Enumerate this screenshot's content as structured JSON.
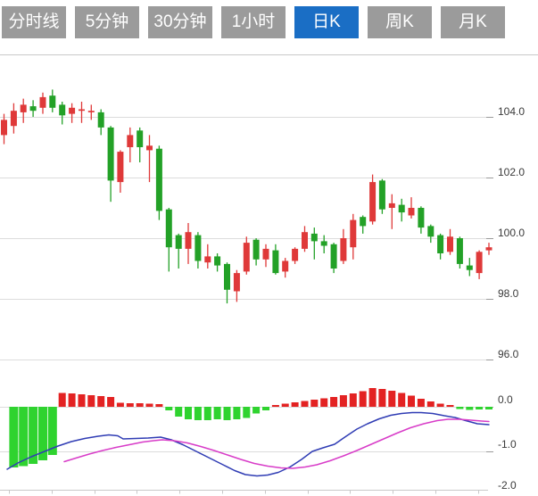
{
  "tabs": [
    {
      "label": "分时线",
      "active": false
    },
    {
      "label": "5分钟",
      "active": false
    },
    {
      "label": "30分钟",
      "active": false
    },
    {
      "label": "1小时",
      "active": false
    },
    {
      "label": "日K",
      "active": true
    },
    {
      "label": "周K",
      "active": false
    },
    {
      "label": "月K",
      "active": false
    }
  ],
  "colors": {
    "tab_bg": "#9b9b9b",
    "tab_active_bg": "#1a6ec5",
    "tab_text": "#ffffff",
    "candle_up": "#df3939",
    "candle_down": "#23a127",
    "macd_bar_up": "#e32222",
    "macd_bar_down": "#2fd32f",
    "dif_line": "#2f3cb4",
    "dea_line": "#d83cc8",
    "gridline": "#dcdcdc",
    "axis_line": "#c9c9c9",
    "axis_tick": "#9a9a9a",
    "label_text": "#3a3a3a"
  },
  "chart_data": {
    "type": "candlestick",
    "title": "Daily K-line (日K) chart with MACD indicator panel",
    "legend_position": "none",
    "grid": true,
    "price_axis": {
      "side": "right",
      "labels": [
        "104.0",
        "102.0",
        "100.0",
        "98.0",
        "96.0"
      ],
      "values": [
        104.0,
        102.0,
        100.0,
        98.0,
        96.0
      ],
      "range_hint": [
        95.4,
        105.1
      ]
    },
    "candles_ohlc": [
      [
        103.4,
        104.1,
        103.1,
        103.9
      ],
      [
        103.7,
        104.45,
        103.45,
        104.2
      ],
      [
        104.15,
        104.6,
        103.8,
        104.4
      ],
      [
        104.35,
        104.55,
        104.0,
        104.2
      ],
      [
        104.3,
        104.8,
        104.1,
        104.65
      ],
      [
        104.7,
        104.9,
        104.15,
        104.3
      ],
      [
        104.4,
        104.5,
        103.75,
        104.05
      ],
      [
        104.1,
        104.45,
        103.8,
        104.3
      ],
      [
        104.2,
        104.5,
        103.8,
        104.25
      ],
      [
        104.15,
        104.4,
        103.9,
        104.2
      ],
      [
        104.15,
        104.25,
        103.4,
        103.65
      ],
      [
        103.65,
        103.7,
        101.2,
        101.9
      ],
      [
        101.85,
        102.9,
        101.5,
        102.85
      ],
      [
        103.0,
        103.65,
        102.5,
        103.4
      ],
      [
        103.55,
        103.65,
        102.5,
        103.0
      ],
      [
        102.9,
        103.4,
        101.85,
        103.05
      ],
      [
        102.95,
        103.05,
        100.6,
        100.9
      ],
      [
        100.95,
        101.0,
        98.9,
        99.7
      ],
      [
        100.1,
        100.15,
        99.0,
        99.65
      ],
      [
        99.65,
        100.5,
        99.15,
        100.2
      ],
      [
        100.1,
        100.2,
        99.0,
        99.25
      ],
      [
        99.2,
        99.8,
        99.0,
        99.4
      ],
      [
        99.4,
        99.5,
        98.9,
        99.1
      ],
      [
        99.15,
        99.2,
        97.85,
        98.3
      ],
      [
        98.25,
        98.95,
        97.9,
        98.85
      ],
      [
        98.9,
        100.05,
        98.8,
        99.85
      ],
      [
        99.95,
        100.0,
        99.1,
        99.3
      ],
      [
        99.3,
        99.8,
        99.05,
        99.65
      ],
      [
        99.6,
        99.8,
        98.8,
        98.85
      ],
      [
        98.9,
        99.35,
        98.7,
        99.25
      ],
      [
        99.25,
        99.7,
        99.15,
        99.65
      ],
      [
        99.65,
        100.4,
        99.55,
        100.2
      ],
      [
        100.15,
        100.35,
        99.3,
        99.9
      ],
      [
        99.9,
        100.1,
        99.5,
        99.75
      ],
      [
        99.8,
        99.85,
        98.85,
        99.0
      ],
      [
        99.25,
        100.3,
        99.15,
        100.0
      ],
      [
        99.7,
        100.8,
        99.3,
        100.6
      ],
      [
        100.7,
        100.75,
        100.15,
        100.4
      ],
      [
        100.55,
        102.1,
        100.45,
        101.85
      ],
      [
        101.9,
        101.95,
        100.8,
        100.95
      ],
      [
        101.0,
        101.45,
        100.3,
        101.15
      ],
      [
        101.1,
        101.3,
        100.55,
        100.85
      ],
      [
        100.75,
        101.35,
        100.65,
        101.0
      ],
      [
        101.0,
        101.05,
        100.15,
        100.35
      ],
      [
        100.4,
        100.45,
        99.85,
        100.05
      ],
      [
        100.1,
        100.15,
        99.3,
        99.5
      ],
      [
        99.55,
        100.3,
        99.45,
        100.05
      ],
      [
        100.0,
        100.05,
        99.0,
        99.15
      ],
      [
        99.1,
        99.35,
        98.75,
        98.95
      ],
      [
        98.85,
        99.6,
        98.65,
        99.55
      ],
      [
        99.6,
        99.85,
        99.45,
        99.7
      ]
    ],
    "macd": {
      "axis_labels": [
        "0.0",
        "-1.0",
        "-2.0"
      ],
      "axis_values": [
        0.0,
        -1.0,
        -2.0
      ],
      "range_hint": [
        -2.0,
        0.5
      ],
      "histogram": [
        null,
        -1.36,
        -1.33,
        -1.28,
        -1.2,
        -1.08,
        0.31,
        0.3,
        0.28,
        0.26,
        0.24,
        0.22,
        0.09,
        0.08,
        0.08,
        0.07,
        0.06,
        -0.08,
        -0.22,
        -0.28,
        -0.3,
        -0.3,
        -0.28,
        -0.3,
        -0.28,
        -0.25,
        -0.15,
        -0.08,
        0.04,
        0.07,
        0.1,
        0.13,
        0.16,
        0.19,
        0.22,
        0.26,
        0.3,
        0.35,
        0.42,
        0.4,
        0.36,
        0.31,
        0.25,
        0.18,
        0.12,
        0.07,
        0.04,
        -0.05,
        -0.07,
        -0.06,
        -0.06
      ],
      "dif_points": [
        [
          8,
          -1.4
        ],
        [
          20,
          -1.26
        ],
        [
          35,
          -1.12
        ],
        [
          50,
          -1.0
        ],
        [
          65,
          -0.88
        ],
        [
          80,
          -0.78
        ],
        [
          95,
          -0.71
        ],
        [
          110,
          -0.66
        ],
        [
          122,
          -0.63
        ],
        [
          132,
          -0.65
        ],
        [
          138,
          -0.72
        ],
        [
          152,
          -0.71
        ],
        [
          166,
          -0.7
        ],
        [
          180,
          -0.68
        ],
        [
          192,
          -0.74
        ],
        [
          205,
          -0.85
        ],
        [
          220,
          -1.0
        ],
        [
          235,
          -1.15
        ],
        [
          250,
          -1.3
        ],
        [
          263,
          -1.43
        ],
        [
          275,
          -1.52
        ],
        [
          288,
          -1.55
        ],
        [
          300,
          -1.53
        ],
        [
          312,
          -1.47
        ],
        [
          325,
          -1.35
        ],
        [
          338,
          -1.18
        ],
        [
          350,
          -1.0
        ],
        [
          362,
          -0.92
        ],
        [
          375,
          -0.84
        ],
        [
          388,
          -0.66
        ],
        [
          400,
          -0.5
        ],
        [
          412,
          -0.38
        ],
        [
          425,
          -0.27
        ],
        [
          438,
          -0.19
        ],
        [
          450,
          -0.15
        ],
        [
          462,
          -0.13
        ],
        [
          472,
          -0.13
        ],
        [
          485,
          -0.15
        ],
        [
          498,
          -0.2
        ],
        [
          510,
          -0.24
        ],
        [
          522,
          -0.31
        ],
        [
          535,
          -0.38
        ],
        [
          548,
          -0.4
        ]
      ],
      "dea_points": [
        [
          72,
          -1.23
        ],
        [
          85,
          -1.15
        ],
        [
          100,
          -1.06
        ],
        [
          115,
          -0.98
        ],
        [
          130,
          -0.91
        ],
        [
          145,
          -0.85
        ],
        [
          160,
          -0.79
        ],
        [
          172,
          -0.76
        ],
        [
          182,
          -0.74
        ],
        [
          195,
          -0.76
        ],
        [
          210,
          -0.81
        ],
        [
          225,
          -0.89
        ],
        [
          240,
          -0.98
        ],
        [
          255,
          -1.08
        ],
        [
          270,
          -1.18
        ],
        [
          285,
          -1.27
        ],
        [
          300,
          -1.33
        ],
        [
          315,
          -1.37
        ],
        [
          328,
          -1.38
        ],
        [
          342,
          -1.35
        ],
        [
          355,
          -1.3
        ],
        [
          370,
          -1.21
        ],
        [
          385,
          -1.1
        ],
        [
          400,
          -0.98
        ],
        [
          415,
          -0.85
        ],
        [
          430,
          -0.72
        ],
        [
          445,
          -0.59
        ],
        [
          460,
          -0.47
        ],
        [
          475,
          -0.38
        ],
        [
          490,
          -0.31
        ],
        [
          502,
          -0.28
        ],
        [
          515,
          -0.28
        ],
        [
          528,
          -0.3
        ],
        [
          540,
          -0.32
        ],
        [
          548,
          -0.33
        ]
      ]
    }
  }
}
